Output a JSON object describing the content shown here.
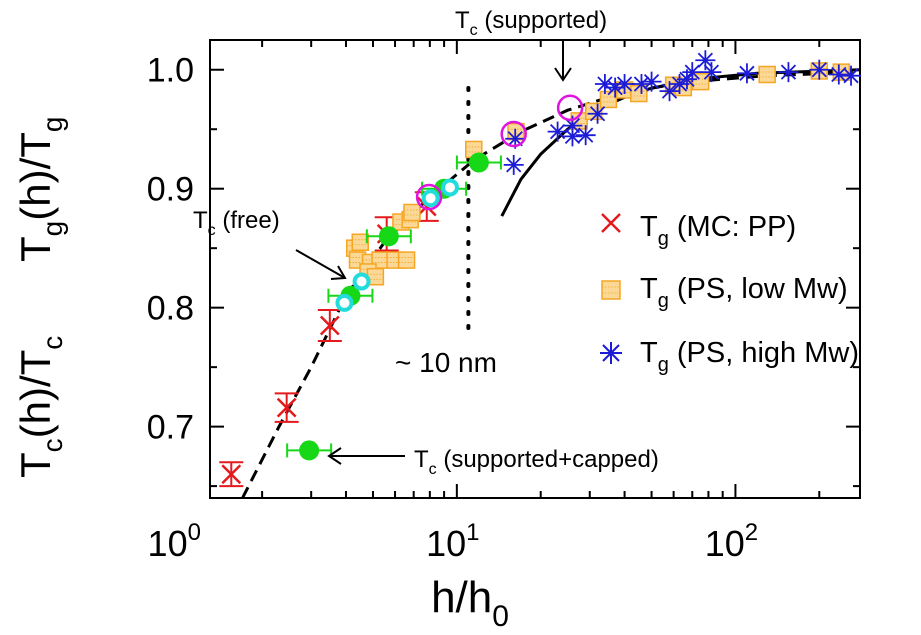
{
  "chart_data": {
    "type": "scatter",
    "xscale": "log",
    "xlim": [
      1.3,
      280
    ],
    "ylim": [
      0.64,
      1.025
    ],
    "xticks": [
      {
        "value": 1,
        "base": "10",
        "exp": "0"
      },
      {
        "value": 10,
        "base": "10",
        "exp": "1"
      },
      {
        "value": 100,
        "base": "10",
        "exp": "2"
      }
    ],
    "yticks": [
      {
        "value": 0.7,
        "label": "0.7"
      },
      {
        "value": 0.8,
        "label": "0.8"
      },
      {
        "value": 0.9,
        "label": "0.9"
      },
      {
        "value": 1.0,
        "label": "1.0"
      }
    ],
    "xlabel": {
      "main": "h/h",
      "sub": "0"
    },
    "ylabel_lower": {
      "t1": "T",
      "s1": "c",
      "t2": "(h)/T",
      "s2": "c"
    },
    "ylabel_upper": {
      "t1": "T",
      "s1": "g",
      "t2": "(h)/T",
      "s2": "g"
    },
    "series": [
      {
        "name": "T_g (MC: PP)",
        "legend": {
          "main": "T",
          "sub": "g",
          "rest": " (MC: PP)"
        },
        "marker": "x-errorbar",
        "color": "#e41a1c",
        "points": [
          {
            "x": 1.55,
            "y": 0.66,
            "err": 0.01
          },
          {
            "x": 2.45,
            "y": 0.716,
            "err": 0.012
          },
          {
            "x": 3.5,
            "y": 0.785,
            "err": 0.013
          },
          {
            "x": 5.6,
            "y": 0.862,
            "err": 0.014
          },
          {
            "x": 7.8,
            "y": 0.885,
            "err": 0.012
          }
        ]
      },
      {
        "name": "T_g (PS, low Mw)",
        "legend": {
          "main": "T",
          "sub": "g",
          "rest": " (PS, low Mw)"
        },
        "marker": "square",
        "color": "#f5a623",
        "fill": "#fbd896",
        "points": [
          {
            "x": 4.3,
            "y": 0.85
          },
          {
            "x": 4.5,
            "y": 0.855
          },
          {
            "x": 4.4,
            "y": 0.84
          },
          {
            "x": 4.9,
            "y": 0.838
          },
          {
            "x": 5.3,
            "y": 0.84
          },
          {
            "x": 4.8,
            "y": 0.83
          },
          {
            "x": 5.1,
            "y": 0.826
          },
          {
            "x": 6.0,
            "y": 0.84
          },
          {
            "x": 6.6,
            "y": 0.84
          },
          {
            "x": 6.3,
            "y": 0.872
          },
          {
            "x": 6.8,
            "y": 0.874
          },
          {
            "x": 6.9,
            "y": 0.88
          },
          {
            "x": 11.5,
            "y": 0.933
          },
          {
            "x": 16.3,
            "y": 0.948
          },
          {
            "x": 27.5,
            "y": 0.957
          },
          {
            "x": 31.0,
            "y": 0.965
          },
          {
            "x": 35.0,
            "y": 0.975
          },
          {
            "x": 40.0,
            "y": 0.983
          },
          {
            "x": 45.0,
            "y": 0.98
          },
          {
            "x": 60.0,
            "y": 0.987
          },
          {
            "x": 65.0,
            "y": 0.985
          },
          {
            "x": 75.0,
            "y": 0.99
          },
          {
            "x": 130.0,
            "y": 0.996
          },
          {
            "x": 200.0,
            "y": 0.999
          },
          {
            "x": 240.0,
            "y": 0.998
          }
        ]
      },
      {
        "name": "T_g (PS, high Mw)",
        "legend": {
          "main": "T",
          "sub": "g",
          "rest": " (PS, high Mw)"
        },
        "marker": "asterisk",
        "color": "#1c1cd6",
        "points": [
          {
            "x": 16.0,
            "y": 0.92
          },
          {
            "x": 16.2,
            "y": 0.942
          },
          {
            "x": 23.0,
            "y": 0.948
          },
          {
            "x": 26.0,
            "y": 0.944
          },
          {
            "x": 29.0,
            "y": 0.945
          },
          {
            "x": 26.0,
            "y": 0.953
          },
          {
            "x": 32.0,
            "y": 0.963
          },
          {
            "x": 34.0,
            "y": 0.988
          },
          {
            "x": 37.0,
            "y": 0.985
          },
          {
            "x": 40.0,
            "y": 0.988
          },
          {
            "x": 46.0,
            "y": 0.988
          },
          {
            "x": 50.0,
            "y": 0.99
          },
          {
            "x": 58.0,
            "y": 0.982
          },
          {
            "x": 63.0,
            "y": 0.988
          },
          {
            "x": 67.0,
            "y": 0.992
          },
          {
            "x": 70.0,
            "y": 0.998
          },
          {
            "x": 78.0,
            "y": 1.008
          },
          {
            "x": 82.0,
            "y": 0.998
          },
          {
            "x": 110.0,
            "y": 0.997
          },
          {
            "x": 155.0,
            "y": 0.998
          },
          {
            "x": 200.0,
            "y": 1.0
          },
          {
            "x": 235.0,
            "y": 0.996
          },
          {
            "x": 260.0,
            "y": 0.995
          }
        ]
      },
      {
        "name": "T_c (supported+capped)",
        "marker": "circle-errorbar",
        "color": "#17d817",
        "points": [
          {
            "x": 2.95,
            "y": 0.68,
            "err": 0.005
          },
          {
            "x": 4.15,
            "y": 0.81,
            "err": 0.006
          },
          {
            "x": 5.7,
            "y": 0.86,
            "err": 0.007
          },
          {
            "x": 9.0,
            "y": 0.9,
            "err": 0.008
          },
          {
            "x": 12.0,
            "y": 0.922,
            "err": 0.008
          }
        ]
      },
      {
        "name": "T_c (free)",
        "marker": "ring",
        "color": "#22dcdc",
        "points": [
          {
            "x": 3.95,
            "y": 0.804
          },
          {
            "x": 4.55,
            "y": 0.822
          },
          {
            "x": 8.05,
            "y": 0.892
          },
          {
            "x": 9.45,
            "y": 0.901
          }
        ]
      },
      {
        "name": "T_c (supported)",
        "marker": "open-circle",
        "color": "#e014e0",
        "points": [
          {
            "x": 7.95,
            "y": 0.893
          },
          {
            "x": 16.0,
            "y": 0.946
          },
          {
            "x": 25.5,
            "y": 0.968
          }
        ]
      }
    ],
    "lines": [
      {
        "style": "dashed",
        "points": [
          [
            1.7,
            0.64
          ],
          [
            2.3,
            0.7
          ],
          [
            3.0,
            0.75
          ],
          [
            4.0,
            0.81
          ],
          [
            5.5,
            0.855
          ],
          [
            8.0,
            0.893
          ],
          [
            11.5,
            0.924
          ],
          [
            17.0,
            0.948
          ],
          [
            25.0,
            0.966
          ],
          [
            40.0,
            0.981
          ],
          [
            70.0,
            0.99
          ],
          [
            130.0,
            0.995
          ],
          [
            280.0,
            0.998
          ]
        ]
      },
      {
        "style": "solid",
        "points": [
          [
            14.5,
            0.877
          ],
          [
            17.0,
            0.908
          ],
          [
            20.0,
            0.929
          ],
          [
            25.0,
            0.95
          ],
          [
            32.0,
            0.967
          ],
          [
            45.0,
            0.982
          ],
          [
            70.0,
            0.992
          ],
          [
            120.0,
            0.997
          ],
          [
            280.0,
            1.0
          ]
        ]
      }
    ],
    "vline": {
      "x": 11.0,
      "style": "dotted"
    },
    "annotations": {
      "free": {
        "main": "T",
        "sub": "c",
        "rest": " (free)"
      },
      "supported": {
        "main": "T",
        "sub": "c",
        "rest": " (supported)"
      },
      "capped": {
        "main": "T",
        "sub": "c",
        "rest": " (supported+capped)"
      },
      "nm": "~ 10 nm"
    }
  }
}
